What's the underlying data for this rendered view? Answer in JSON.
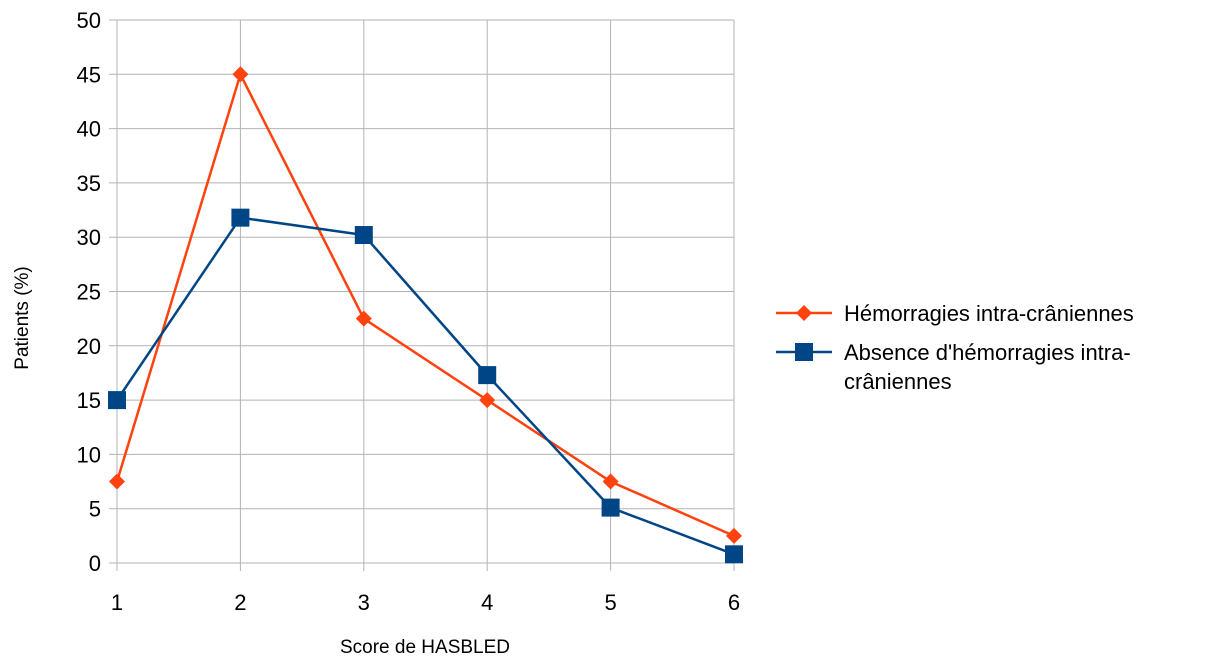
{
  "chart_data": {
    "type": "line",
    "title": "",
    "xlabel": "Score de HASBLED",
    "ylabel": "Patients (%)",
    "x": [
      1,
      2,
      3,
      4,
      5,
      6
    ],
    "x_tick_labels": [
      "1",
      "2",
      "3",
      "4",
      "5",
      "6"
    ],
    "ylim": [
      0,
      50
    ],
    "y_ticks": [
      0,
      5,
      10,
      15,
      20,
      25,
      30,
      35,
      40,
      45,
      50
    ],
    "y_tick_labels": [
      "0",
      "5",
      "10",
      "15",
      "20",
      "25",
      "30",
      "35",
      "40",
      "45",
      "50"
    ],
    "grid": true,
    "legend_position": "right",
    "series": [
      {
        "name": "Hémorragies intra-crâniennes",
        "legend_lines": [
          "Hémorragies intra-crâniennes"
        ],
        "values": [
          7.5,
          45,
          22.5,
          15,
          7.5,
          2.5
        ],
        "color": "#ff420e",
        "marker": "diamond"
      },
      {
        "name": "Absence d'hémorragies intra-crâniennes",
        "legend_lines": [
          "Absence d'hémorragies intra-",
          "crâniennes"
        ],
        "values": [
          15,
          31.8,
          30.2,
          17.3,
          5.1,
          0.8
        ],
        "color": "#004586",
        "marker": "square"
      }
    ]
  }
}
